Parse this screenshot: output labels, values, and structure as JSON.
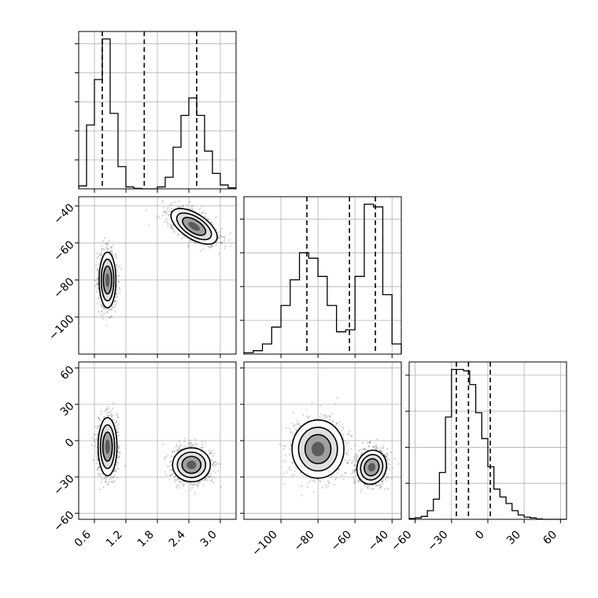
{
  "chart_data": {
    "type": "corner",
    "parameters": [
      {
        "name": "",
        "range": [
          0.3,
          3.3
        ],
        "ticks": [
          0.6,
          1.2,
          1.8,
          2.4,
          3.0
        ],
        "tick_labels": [
          "0.6",
          "1.2",
          "1.8",
          "2.4",
          "3.0"
        ]
      },
      {
        "name": "",
        "range": [
          -120,
          -35
        ],
        "ticks": [
          -100,
          -80,
          -60,
          -40
        ],
        "tick_labels": [
          "−100",
          "−80",
          "−60",
          "−40"
        ]
      },
      {
        "name": "",
        "range": [
          -65,
          65
        ],
        "ticks": [
          -60,
          -30,
          0,
          30,
          60
        ],
        "tick_labels": [
          "−60",
          "−30",
          "0",
          "30",
          "60"
        ]
      }
    ],
    "histograms": [
      {
        "param": 0,
        "bin_edges": [
          0.3,
          0.45,
          0.6,
          0.75,
          0.9,
          1.05,
          1.2,
          1.35,
          1.5,
          1.65,
          1.8,
          1.95,
          2.1,
          2.25,
          2.4,
          2.55,
          2.7,
          2.85,
          3.0,
          3.15,
          3.3
        ],
        "counts": [
          0.3,
          6.6,
          11.3,
          15.5,
          7.8,
          2.3,
          0.2,
          0.05,
          0,
          0,
          0.2,
          1.2,
          4.3,
          7.6,
          9.4,
          7.6,
          3.9,
          1.6,
          0.4,
          0.1
        ],
        "quantiles": [
          0.75,
          1.55,
          2.55
        ]
      },
      {
        "param": 1,
        "bin_edges": [
          -120,
          -115,
          -110,
          -105,
          -100,
          -95,
          -90,
          -85,
          -80,
          -75,
          -70,
          -65,
          -60,
          -55,
          -50,
          -45,
          -40,
          -35
        ],
        "counts": [
          0.2,
          0.5,
          1.5,
          4.0,
          7.2,
          11.0,
          15.0,
          14.2,
          11.5,
          7.2,
          3.3,
          3.6,
          11.5,
          22.2,
          21.8,
          8.8,
          1.5
        ],
        "quantiles": [
          -86,
          -63,
          -49
        ]
      },
      {
        "param": 2,
        "bin_edges": [
          -65,
          -60,
          -55,
          -50,
          -45,
          -40,
          -35,
          -30,
          -25,
          -20,
          -15,
          -10,
          -5,
          0,
          5,
          10,
          15,
          20,
          25,
          30,
          35,
          40,
          45,
          50,
          55,
          60,
          65
        ],
        "counts": [
          0.1,
          0.2,
          0.4,
          1.2,
          2.8,
          6.5,
          14.2,
          20.8,
          20.8,
          20.6,
          18.7,
          14.8,
          11.2,
          7.3,
          4.2,
          3.1,
          2.2,
          1.2,
          0.6,
          0.3,
          0.2,
          0.05,
          0,
          0,
          0,
          0
        ],
        "quantiles": [
          -26,
          -16,
          2
        ]
      }
    ],
    "pairs": [
      {
        "x_param": 0,
        "y_param": 1,
        "clusters": [
          {
            "center": [
              0.85,
              -80
            ],
            "spread": [
              0.08,
              7.5
            ],
            "rho": 0.0,
            "n": 1200
          },
          {
            "center": [
              2.5,
              -51
            ],
            "spread": [
              0.22,
              4.8
            ],
            "rho": -0.6,
            "n": 1200
          }
        ]
      },
      {
        "x_param": 0,
        "y_param": 2,
        "clusters": [
          {
            "center": [
              0.85,
              -5
            ],
            "spread": [
              0.09,
              12
            ],
            "rho": 0.0,
            "n": 1200
          },
          {
            "center": [
              2.45,
              -20
            ],
            "spread": [
              0.18,
              7
            ],
            "rho": 0.0,
            "n": 1200
          }
        ]
      },
      {
        "x_param": 1,
        "y_param": 2,
        "clusters": [
          {
            "center": [
              -80,
              -7
            ],
            "spread": [
              7,
              12
            ],
            "rho": 0.0,
            "n": 1200
          },
          {
            "center": [
              -51,
              -22
            ],
            "spread": [
              4,
              7
            ],
            "rho": 0.1,
            "n": 1200
          }
        ]
      }
    ],
    "grid": true
  }
}
